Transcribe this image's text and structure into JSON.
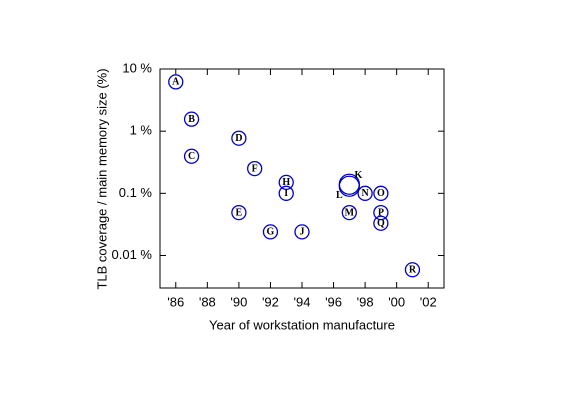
{
  "chart_data": {
    "type": "scatter",
    "xlabel": "Year of workstation manufacture",
    "ylabel": "TLB coverage / main memory size (%)",
    "xlim": [
      1985,
      2003
    ],
    "ylim": [
      0.003,
      10
    ],
    "ylog": true,
    "xticks": [
      {
        "value": 1986,
        "label": "'86"
      },
      {
        "value": 1988,
        "label": "'88"
      },
      {
        "value": 1990,
        "label": "'90"
      },
      {
        "value": 1992,
        "label": "'92"
      },
      {
        "value": 1994,
        "label": "'94"
      },
      {
        "value": 1996,
        "label": "'96"
      },
      {
        "value": 1998,
        "label": "'98"
      },
      {
        "value": 2000,
        "label": "'00"
      },
      {
        "value": 2002,
        "label": "'02"
      }
    ],
    "yticks": [
      {
        "value": 10,
        "label": "10 %"
      },
      {
        "value": 1,
        "label": "1 %"
      },
      {
        "value": 0.1,
        "label": "0.1 %"
      },
      {
        "value": 0.01,
        "label": "0.01 %"
      }
    ],
    "series": [
      {
        "color": "#0000cc",
        "labels": [
          "A",
          "B",
          "C",
          "D",
          "E",
          "F",
          "G",
          "H",
          "I",
          "J",
          "K",
          "L",
          "M",
          "N",
          "O",
          "P",
          "Q",
          "R"
        ],
        "x": [
          1986,
          1987,
          1987,
          1990,
          1990,
          1991,
          1992,
          1993,
          1993,
          1994,
          1997,
          1997,
          1997,
          1998,
          1999,
          1999,
          1999,
          2001
        ],
        "values": [
          6.2,
          1.56,
          0.395,
          0.77,
          0.049,
          0.25,
          0.024,
          0.15,
          0.1,
          0.024,
          0.14,
          0.13,
          0.049,
          0.1,
          0.1,
          0.049,
          0.033,
          0.0059
        ]
      }
    ]
  }
}
